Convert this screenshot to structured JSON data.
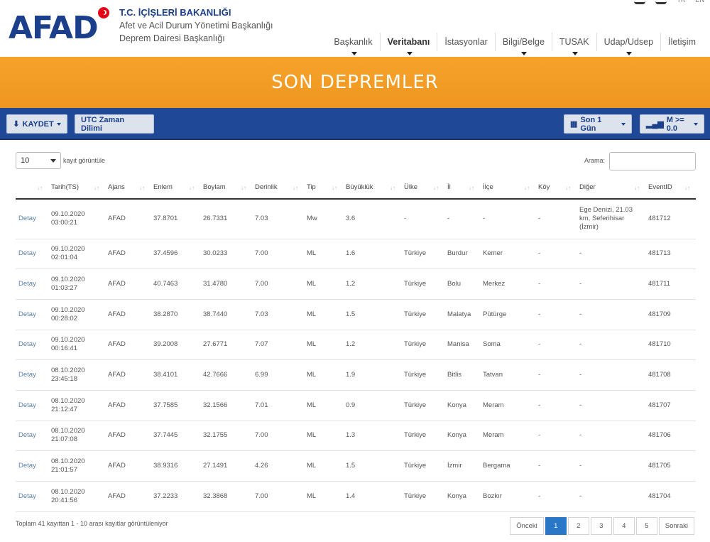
{
  "header": {
    "logo_text": "AFAD",
    "org_line1": "T.C. İÇİŞLERİ BAKANLIĞI",
    "org_line2": "Afet ve Acil Durum Yönetimi Başkanlığı",
    "org_line3": "Deprem Dairesi Başkanlığı",
    "lang_tr": "TR",
    "lang_en": "EN"
  },
  "nav": {
    "items": [
      {
        "label": "Başkanlık",
        "caret": true
      },
      {
        "label": "Veritabanı",
        "caret": true,
        "active": true
      },
      {
        "label": "İstasyonlar",
        "caret": false
      },
      {
        "label": "Bilgi/Belge",
        "caret": true
      },
      {
        "label": "TUSAK",
        "caret": true
      },
      {
        "label": "Udap/Udsep",
        "caret": true
      },
      {
        "label": "İletişim",
        "caret": false
      }
    ]
  },
  "banner": {
    "title": "SON DEPREMLER"
  },
  "toolbar": {
    "save_label": "KAYDET",
    "utc_label": "UTC Zaman Dilimi",
    "period_label": "Son 1 Gün",
    "magnitude_label": "M >= 0.0"
  },
  "controls": {
    "page_size": "10",
    "show_label": "kayıt görüntüle",
    "search_label": "Arama:",
    "search_value": ""
  },
  "table": {
    "columns": [
      "",
      "Tarih(TS)",
      "Ajans",
      "Enlem",
      "Boylam",
      "Derinlik",
      "Tip",
      "Büyüklük",
      "Ülke",
      "İl",
      "İlçe",
      "Köy",
      "Diğer",
      "EventID"
    ],
    "rows": [
      [
        "Detay",
        "09.10.2020 03:00:21",
        "AFAD",
        "37.8701",
        "26.7331",
        "7.03",
        "Mw",
        "3.6",
        "-",
        "-",
        "-",
        "-",
        "Ege Denizi, 21.03 km, Seferihisar (İzmir)",
        "481712"
      ],
      [
        "Detay",
        "09.10.2020 02:01:04",
        "AFAD",
        "37.4596",
        "30.0233",
        "7.00",
        "ML",
        "1.6",
        "Türkiye",
        "Burdur",
        "Kemer",
        "-",
        "-",
        "481713"
      ],
      [
        "Detay",
        "09.10.2020 01:03:27",
        "AFAD",
        "40.7463",
        "31.4780",
        "7.00",
        "ML",
        "1.2",
        "Türkiye",
        "Bolu",
        "Merkez",
        "-",
        "-",
        "481711"
      ],
      [
        "Detay",
        "09.10.2020 00:28:02",
        "AFAD",
        "38.2870",
        "38.7440",
        "7.03",
        "ML",
        "1.5",
        "Türkiye",
        "Malatya",
        "Pütürge",
        "-",
        "-",
        "481709"
      ],
      [
        "Detay",
        "09.10.2020 00:16:41",
        "AFAD",
        "39.2008",
        "27.6771",
        "7.07",
        "ML",
        "1.2",
        "Türkiye",
        "Manisa",
        "Soma",
        "-",
        "-",
        "481710"
      ],
      [
        "Detay",
        "08.10.2020 23:45:18",
        "AFAD",
        "38.4101",
        "42.7666",
        "6.99",
        "ML",
        "1.9",
        "Türkiye",
        "Bitlis",
        "Tatvan",
        "-",
        "-",
        "481708"
      ],
      [
        "Detay",
        "08.10.2020 21:12:47",
        "AFAD",
        "37.7585",
        "32.1566",
        "7.01",
        "ML",
        "0.9",
        "Türkiye",
        "Konya",
        "Meram",
        "-",
        "-",
        "481707"
      ],
      [
        "Detay",
        "08.10.2020 21:07:08",
        "AFAD",
        "37.7445",
        "32.1755",
        "7.00",
        "ML",
        "1.3",
        "Türkiye",
        "Konya",
        "Meram",
        "-",
        "-",
        "481706"
      ],
      [
        "Detay",
        "08.10.2020 21:01:57",
        "AFAD",
        "38.9316",
        "27.1491",
        "4.26",
        "ML",
        "1.5",
        "Türkiye",
        "İzmir",
        "Bergama",
        "-",
        "-",
        "481705"
      ],
      [
        "Detay",
        "08.10.2020 20:41:56",
        "AFAD",
        "37.2233",
        "32.3868",
        "7.00",
        "ML",
        "1.4",
        "Türkiye",
        "Konya",
        "Bozkır",
        "-",
        "-",
        "481704"
      ]
    ]
  },
  "footer": {
    "info": "Toplam 41 kayıttan 1 - 10 arası kayıtlar görüntüleniyor",
    "prev": "Önceki",
    "pages": [
      "1",
      "2",
      "3",
      "4",
      "5"
    ],
    "current_page": "1",
    "next": "Sonraki"
  }
}
